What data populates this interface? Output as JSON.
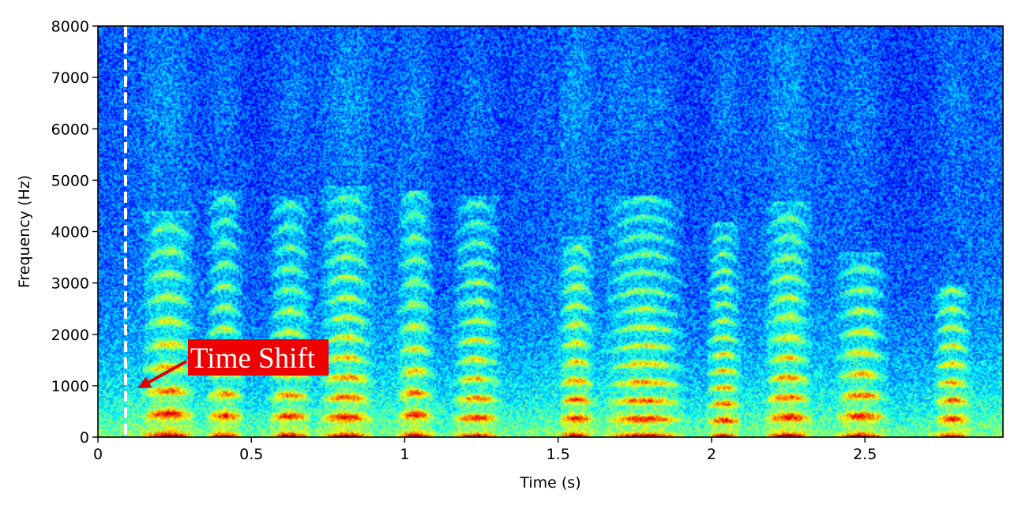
{
  "chart_data": {
    "type": "heatmap",
    "subtype": "spectrogram",
    "title": "",
    "xlabel": "Time (s)",
    "ylabel": "Frequency (Hz)",
    "xlim": [
      0,
      2.95
    ],
    "ylim": [
      0,
      8000
    ],
    "xticks": [
      0,
      0.5,
      1,
      1.5,
      2,
      2.5
    ],
    "xtick_labels": [
      "0",
      "0.5",
      "1",
      "1.5",
      "2",
      "2.5"
    ],
    "yticks": [
      0,
      1000,
      2000,
      3000,
      4000,
      5000,
      6000,
      7000,
      8000
    ],
    "ytick_labels": [
      "0",
      "1000",
      "2000",
      "3000",
      "4000",
      "5000",
      "6000",
      "7000",
      "8000"
    ],
    "colormap": "jet",
    "grid": false,
    "marker_line": {
      "time": 0.09,
      "style": "dashed",
      "color": "#ffffff"
    },
    "annotation": {
      "text": "Time Shift",
      "box_color": "#ee0000",
      "arrow_color": "#e00000",
      "arrow_tip": {
        "time": 0.13,
        "freq": 950
      }
    },
    "energy_segments": [
      {
        "start": 0.14,
        "end": 0.32,
        "f0": 420,
        "max_freq": 4400
      },
      {
        "start": 0.35,
        "end": 0.48,
        "f0": 390,
        "max_freq": 4800
      },
      {
        "start": 0.55,
        "end": 0.7,
        "f0": 380,
        "max_freq": 4700
      },
      {
        "start": 0.72,
        "end": 0.9,
        "f0": 360,
        "max_freq": 4900
      },
      {
        "start": 0.97,
        "end": 1.1,
        "f0": 400,
        "max_freq": 4800
      },
      {
        "start": 1.15,
        "end": 1.32,
        "f0": 350,
        "max_freq": 4700
      },
      {
        "start": 1.5,
        "end": 1.62,
        "f0": 340,
        "max_freq": 3900
      },
      {
        "start": 1.65,
        "end": 1.92,
        "f0": 330,
        "max_freq": 4700
      },
      {
        "start": 1.98,
        "end": 2.1,
        "f0": 300,
        "max_freq": 4200
      },
      {
        "start": 2.17,
        "end": 2.33,
        "f0": 360,
        "max_freq": 4600
      },
      {
        "start": 2.4,
        "end": 2.58,
        "f0": 380,
        "max_freq": 3600
      },
      {
        "start": 2.72,
        "end": 2.85,
        "f0": 330,
        "max_freq": 3000
      }
    ]
  }
}
